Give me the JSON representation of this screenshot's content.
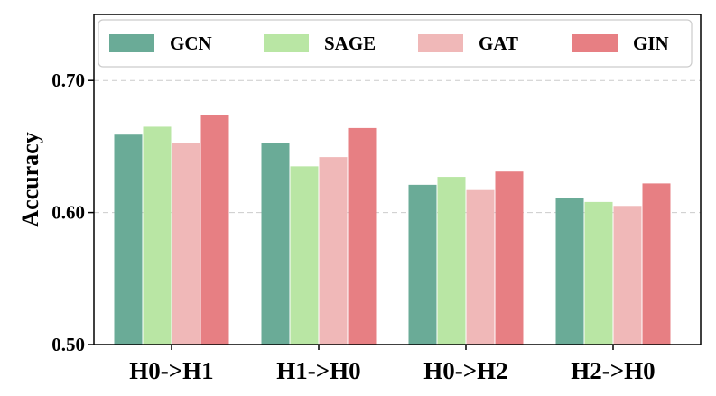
{
  "chart_data": {
    "type": "bar",
    "title": "",
    "xlabel": "",
    "ylabel": "Accuracy",
    "ylim": [
      0.5,
      0.75
    ],
    "yticks": [
      "0.50",
      "0.60",
      "0.70"
    ],
    "categories": [
      "H0->H1",
      "H1->H0",
      "H0->H2",
      "H2->H0"
    ],
    "series": [
      {
        "name": "GCN",
        "color": "#6aab97",
        "values": [
          0.659,
          0.653,
          0.621,
          0.611
        ]
      },
      {
        "name": "SAGE",
        "color": "#b9e6a4",
        "values": [
          0.665,
          0.635,
          0.627,
          0.608
        ]
      },
      {
        "name": "GAT",
        "color": "#f0b8b8",
        "values": [
          0.653,
          0.642,
          0.617,
          0.605
        ]
      },
      {
        "name": "GIN",
        "color": "#e77f83",
        "values": [
          0.674,
          0.664,
          0.631,
          0.622
        ]
      }
    ],
    "grid": true,
    "legend_position": "top"
  }
}
